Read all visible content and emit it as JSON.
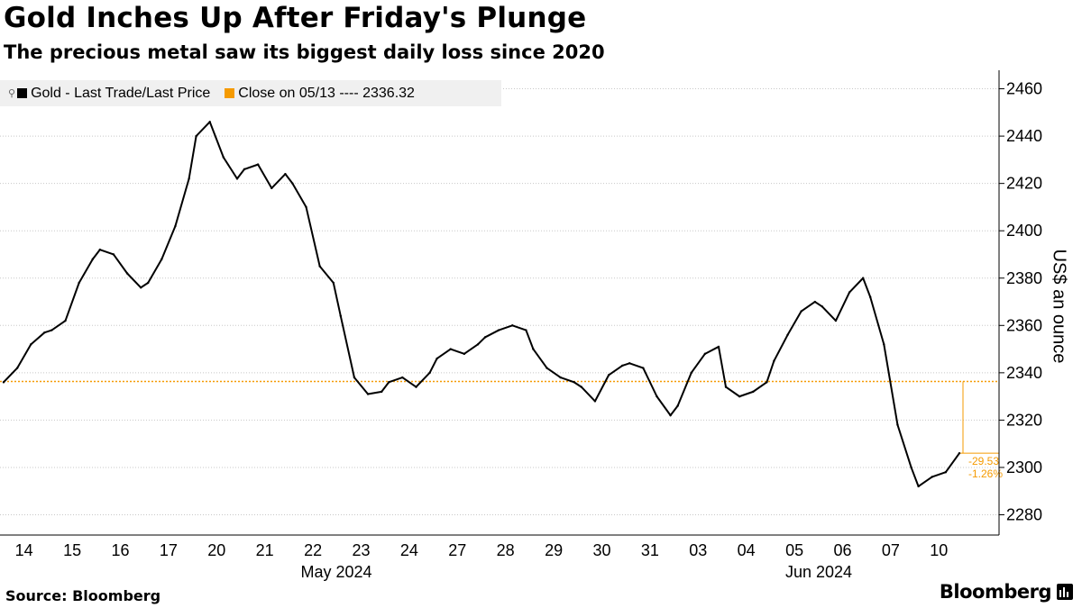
{
  "title": "Gold Inches Up After Friday's Plunge",
  "subtitle": "The precious metal saw its biggest daily loss since 2020",
  "source": "Source: Bloomberg",
  "brand": "Bloomberg",
  "legend": {
    "series_label": "Gold - Last Trade/Last Price",
    "ref_label": "Close on 05/13 ---- 2336.32"
  },
  "colors": {
    "series": "#000000",
    "reference": "#f59a00",
    "grid": "#c8c8c8"
  },
  "chart_data": {
    "type": "line",
    "title": "Gold Inches Up After Friday's Plunge",
    "subtitle": "The precious metal saw its biggest daily loss since 2020",
    "ylabel": "US$ an ounce",
    "ylim": [
      2270,
      2465
    ],
    "yticks": [
      2280,
      2300,
      2320,
      2340,
      2360,
      2380,
      2400,
      2420,
      2440,
      2460
    ],
    "grid": "horizontal dotted",
    "legend_position": "top-left",
    "x_categories": [
      "14",
      "15",
      "16",
      "17",
      "20",
      "21",
      "22",
      "23",
      "24",
      "27",
      "28",
      "29",
      "30",
      "31",
      "03",
      "04",
      "05",
      "06",
      "07",
      "10"
    ],
    "x_group_labels": [
      {
        "label": "May 2024",
        "from": "14",
        "to": "31"
      },
      {
        "label": "Jun 2024",
        "from": "03",
        "to": "10"
      }
    ],
    "series": [
      {
        "name": "Gold - Last Trade/Last Price",
        "x": [
          "14",
          "14",
          "14",
          "14",
          "15",
          "15",
          "15",
          "15",
          "16",
          "16",
          "16",
          "16",
          "17",
          "17",
          "17",
          "17",
          "20",
          "20",
          "20",
          "20",
          "21",
          "21",
          "21",
          "21",
          "22",
          "22",
          "22",
          "22",
          "23",
          "23",
          "23",
          "23",
          "24",
          "24",
          "24",
          "24",
          "27",
          "27",
          "27",
          "27",
          "28",
          "28",
          "28",
          "28",
          "29",
          "29",
          "29",
          "29",
          "30",
          "30",
          "30",
          "30",
          "31",
          "31",
          "31",
          "31",
          "03",
          "03",
          "03",
          "03",
          "04",
          "04",
          "04",
          "04",
          "05",
          "05",
          "05",
          "05",
          "06",
          "06",
          "06",
          "06",
          "07",
          "07",
          "07",
          "07",
          "10",
          "10",
          "10",
          "10"
        ],
        "values": [
          2336,
          2342,
          2352,
          2357,
          2358,
          2362,
          2378,
          2388,
          2392,
          2390,
          2382,
          2376,
          2378,
          2388,
          2402,
          2422,
          2440,
          2446,
          2431,
          2422,
          2426,
          2428,
          2418,
          2424,
          2420,
          2410,
          2385,
          2378,
          2364,
          2338,
          2331,
          2332,
          2336,
          2338,
          2334,
          2340,
          2346,
          2350,
          2348,
          2352,
          2355,
          2358,
          2360,
          2358,
          2350,
          2342,
          2338,
          2336,
          2334,
          2328,
          2339,
          2343,
          2344,
          2342,
          2330,
          2322,
          2326,
          2340,
          2348,
          2351,
          2334,
          2330,
          2332,
          2336,
          2345,
          2356,
          2366,
          2370,
          2368,
          2362,
          2374,
          2380,
          2372,
          2352,
          2318,
          2300,
          2292,
          2296,
          2298,
          2306
        ]
      }
    ],
    "reference_line": {
      "label": "Close on 05/13",
      "value": 2336.32
    },
    "end_annotations": {
      "change": "-29.53",
      "percent_change": "-1.26%"
    }
  }
}
